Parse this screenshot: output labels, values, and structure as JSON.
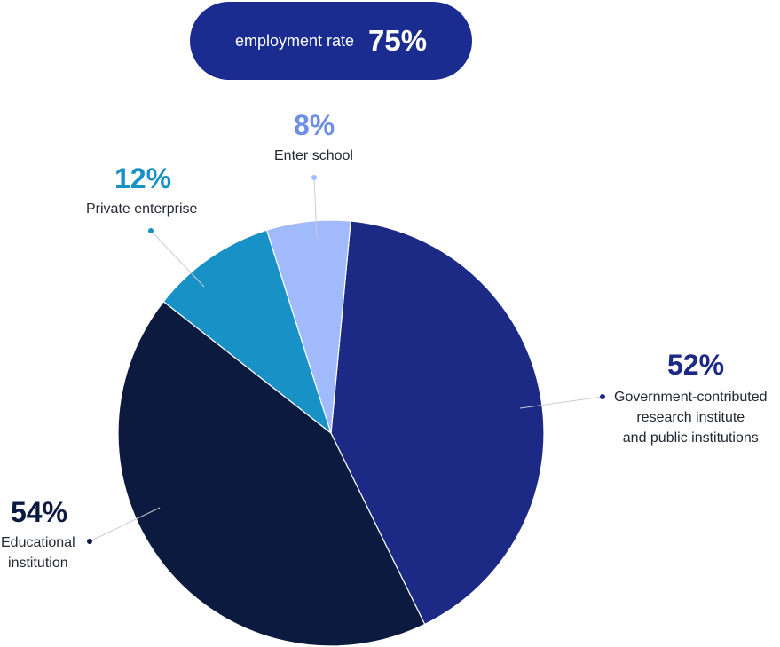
{
  "header": {
    "label": "employment rate",
    "value": "75%"
  },
  "chart_data": {
    "type": "pie",
    "slices": [
      {
        "label": "Government-contributed research institute and public institutions",
        "value": 52,
        "value_label": "52%",
        "color": "#1c2a86"
      },
      {
        "label": "Educational institution",
        "value": 54,
        "value_label": "54%",
        "color": "#0c1a40"
      },
      {
        "label": "Private enterprise",
        "value": 12,
        "value_label": "12%",
        "color": "#1891c6"
      },
      {
        "label": "Enter school",
        "value": 8,
        "value_label": "8%",
        "color": "#a1bafb"
      }
    ]
  },
  "labels": {
    "enter_school": {
      "pct": "8%",
      "name": "Enter school"
    },
    "private": {
      "pct": "12%",
      "name": "Private enterprise"
    },
    "government": {
      "pct": "52%",
      "name_lines": [
        "Government-contributed",
        "research institute",
        "and public institutions"
      ]
    },
    "education": {
      "pct": "54%",
      "name_lines": [
        "Educational",
        "institution"
      ]
    }
  }
}
